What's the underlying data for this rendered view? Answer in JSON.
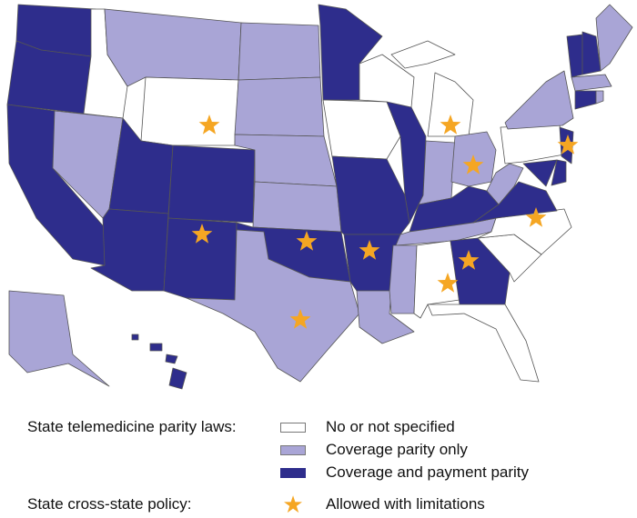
{
  "colors": {
    "none": "#ffffff",
    "coverage": "#a9a5d6",
    "coverage_payment": "#2e2d8c",
    "star": "#f5a623"
  },
  "legend": {
    "parity_title": "State telemedicine parity laws:",
    "parity_items": [
      {
        "label": "No or not specified",
        "category": "none"
      },
      {
        "label": "Coverage parity only",
        "category": "coverage"
      },
      {
        "label": "Coverage and payment parity",
        "category": "coverage_payment"
      }
    ],
    "cross_title": "State cross-state policy:",
    "cross_item": {
      "label": "Allowed with limitations",
      "icon": "star-icon"
    }
  },
  "states": {
    "WA": {
      "category": "coverage_payment",
      "star": false
    },
    "OR": {
      "category": "coverage_payment",
      "star": false
    },
    "CA": {
      "category": "coverage_payment",
      "star": false
    },
    "ID": {
      "category": "none",
      "star": false
    },
    "NV": {
      "category": "coverage",
      "star": false
    },
    "MT": {
      "category": "coverage",
      "star": false
    },
    "WY": {
      "category": "none",
      "star": true
    },
    "UT": {
      "category": "coverage_payment",
      "star": false
    },
    "CO": {
      "category": "coverage_payment",
      "star": false
    },
    "AZ": {
      "category": "coverage_payment",
      "star": false
    },
    "NM": {
      "category": "coverage_payment",
      "star": true
    },
    "ND": {
      "category": "coverage",
      "star": false
    },
    "SD": {
      "category": "coverage",
      "star": false
    },
    "NE": {
      "category": "coverage",
      "star": false
    },
    "KS": {
      "category": "coverage",
      "star": false
    },
    "OK": {
      "category": "coverage_payment",
      "star": true
    },
    "TX": {
      "category": "coverage",
      "star": true
    },
    "MN": {
      "category": "coverage_payment",
      "star": false
    },
    "IA": {
      "category": "none",
      "star": false
    },
    "MO": {
      "category": "coverage_payment",
      "star": false
    },
    "AR": {
      "category": "coverage_payment",
      "star": true
    },
    "LA": {
      "category": "coverage",
      "star": false
    },
    "WI": {
      "category": "none",
      "star": false
    },
    "IL": {
      "category": "coverage_payment",
      "star": false
    },
    "MI": {
      "category": "none",
      "star": true
    },
    "IN": {
      "category": "coverage",
      "star": false
    },
    "OH": {
      "category": "coverage",
      "star": true
    },
    "KY": {
      "category": "coverage_payment",
      "star": false
    },
    "TN": {
      "category": "coverage",
      "star": false
    },
    "MS": {
      "category": "coverage",
      "star": false
    },
    "AL": {
      "category": "none",
      "star": true
    },
    "GA": {
      "category": "coverage_payment",
      "star": true
    },
    "FL": {
      "category": "none",
      "star": false
    },
    "SC": {
      "category": "none",
      "star": false
    },
    "NC": {
      "category": "none",
      "star": true
    },
    "VA": {
      "category": "coverage_payment",
      "star": false
    },
    "WV": {
      "category": "coverage",
      "star": false
    },
    "PA": {
      "category": "none",
      "star": false
    },
    "NY": {
      "category": "coverage",
      "star": false
    },
    "NJ": {
      "category": "coverage_payment",
      "star": true
    },
    "MD": {
      "category": "coverage_payment",
      "star": false
    },
    "DE": {
      "category": "coverage_payment",
      "star": false
    },
    "VT": {
      "category": "coverage_payment",
      "star": false
    },
    "NH": {
      "category": "coverage_payment",
      "star": false
    },
    "ME": {
      "category": "coverage",
      "star": false
    },
    "MA": {
      "category": "coverage",
      "star": false
    },
    "CT": {
      "category": "coverage_payment",
      "star": false
    },
    "RI": {
      "category": "coverage",
      "star": false
    },
    "AK": {
      "category": "coverage",
      "star": false
    },
    "HI": {
      "category": "coverage_payment",
      "star": false
    }
  }
}
